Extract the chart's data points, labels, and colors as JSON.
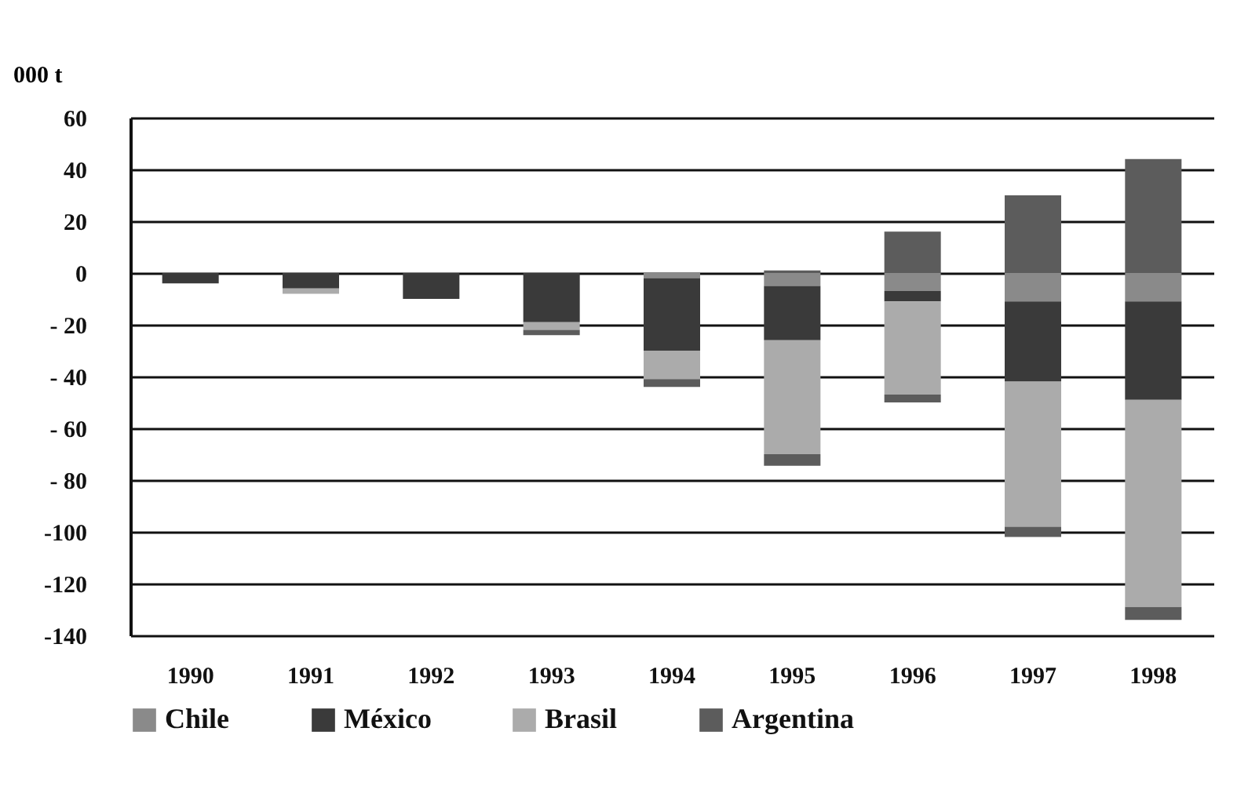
{
  "chart_data": {
    "type": "bar",
    "stacked": true,
    "ylabel": "000 t",
    "categories": [
      "1990",
      "1991",
      "1992",
      "1993",
      "1994",
      "1995",
      "1996",
      "1997",
      "1998"
    ],
    "series": [
      {
        "name": "Chile",
        "color": "#8a8a8a",
        "values": [
          null,
          null,
          null,
          null,
          -2,
          -5,
          -7,
          -11,
          -11
        ]
      },
      {
        "name": "México",
        "color": "#3a3a3a",
        "values": [
          -4,
          -6,
          -10,
          -19,
          -28,
          -21,
          -4,
          -31,
          -38
        ]
      },
      {
        "name": "Brasil",
        "color": "#ababab",
        "values": [
          null,
          -2,
          null,
          -3,
          -11,
          -44,
          -36,
          -56,
          -80
        ]
      },
      {
        "color": "#5c5c5c",
        "values": [
          null,
          null,
          null,
          -2,
          -3,
          -4.5,
          -3,
          -4,
          -5
        ]
      },
      {
        "name": "Argentina",
        "color": "#5c5c5c",
        "values": [
          null,
          null,
          null,
          null,
          null,
          1,
          16,
          30,
          44
        ]
      }
    ],
    "ylim": [
      -140,
      60
    ],
    "yticks": [
      60,
      40,
      20,
      0,
      {
        "value": -20,
        "label": "- 20"
      },
      {
        "value": -40,
        "label": "- 40"
      },
      {
        "value": -60,
        "label": "- 60"
      },
      {
        "value": -80,
        "label": "- 80"
      },
      -100,
      -120,
      -140
    ],
    "grid": "y",
    "legend": "bottom"
  }
}
